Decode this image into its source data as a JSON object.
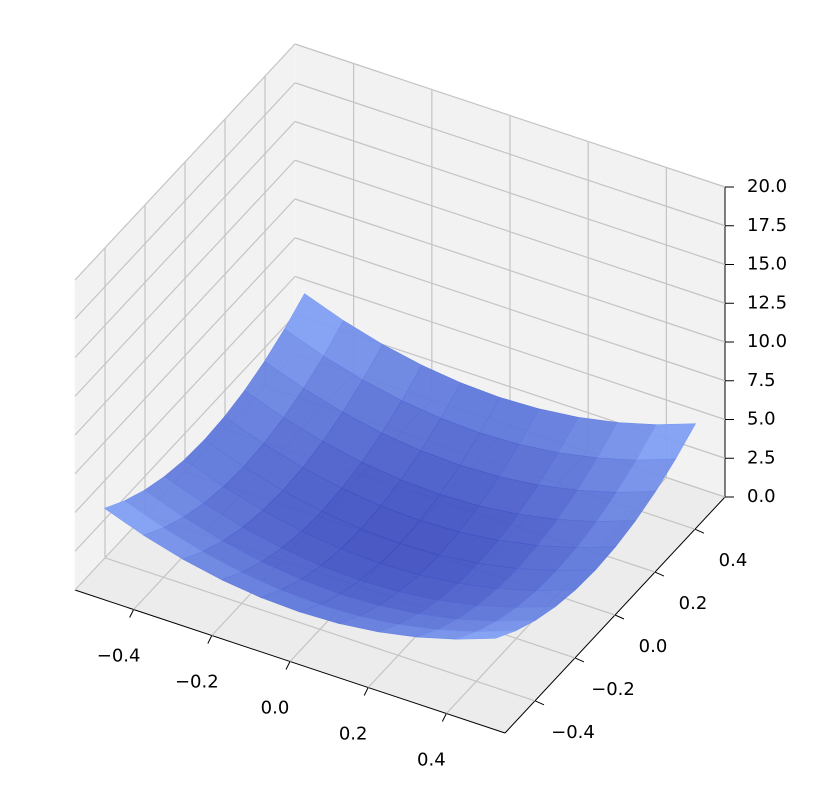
{
  "chart_data": {
    "type": "surface3d",
    "x": [
      -0.5,
      -0.4,
      -0.3,
      -0.2,
      -0.1,
      0,
      0.1,
      0.2,
      0.3,
      0.4,
      0.5
    ],
    "y": [
      -0.5,
      -0.4,
      -0.3,
      -0.2,
      -0.1,
      0,
      0.1,
      0.2,
      0.3,
      0.4,
      0.5
    ],
    "z": [
      [
        5,
        4.1,
        3.4,
        2.9,
        2.6,
        2.5,
        2.6,
        2.9,
        3.4,
        4.1,
        5
      ],
      [
        4.1,
        3.2,
        2.5,
        2,
        1.7,
        1.6,
        1.7,
        2,
        2.5,
        3.2,
        4.1
      ],
      [
        3.4,
        2.5,
        1.8,
        1.3,
        1,
        0.9,
        1,
        1.3,
        1.8,
        2.5,
        3.4
      ],
      [
        2.9,
        2,
        1.3,
        0.8,
        0.5,
        0.4,
        0.5,
        0.8,
        1.3,
        2,
        2.9
      ],
      [
        2.6,
        1.7,
        1,
        0.5,
        0.2,
        0.1,
        0.2,
        0.5,
        1,
        1.7,
        2.6
      ],
      [
        2.5,
        1.6,
        0.9,
        0.4,
        0.1,
        0,
        0.1,
        0.4,
        0.9,
        1.6,
        2.5
      ],
      [
        2.6,
        1.7,
        1,
        0.5,
        0.2,
        0.1,
        0.2,
        0.5,
        1,
        1.7,
        2.6
      ],
      [
        2.9,
        2,
        1.3,
        0.8,
        0.5,
        0.4,
        0.5,
        0.8,
        1.3,
        2,
        2.9
      ],
      [
        3.4,
        2.5,
        1.8,
        1.3,
        1,
        0.9,
        1,
        1.3,
        1.8,
        2.5,
        3.4
      ],
      [
        4.1,
        3.2,
        2.5,
        2,
        1.7,
        1.6,
        1.7,
        2,
        2.5,
        3.2,
        4.1
      ],
      [
        5,
        4.1,
        3.4,
        2.9,
        2.6,
        2.5,
        2.6,
        2.9,
        3.4,
        4.1,
        5
      ]
    ],
    "colormap": [
      "#3b4cc0",
      "#8db0fe"
    ],
    "xlim": [
      -0.55,
      0.55
    ],
    "ylim": [
      -0.55,
      0.55
    ],
    "zlim": [
      0,
      20
    ],
    "xticks": [
      {
        "value": -0.4,
        "label": "−0.4"
      },
      {
        "value": -0.2,
        "label": "−0.2"
      },
      {
        "value": 0,
        "label": "0.0"
      },
      0.2,
      0.4
    ],
    "yticks": [
      {
        "value": -0.4,
        "label": "−0.4"
      },
      {
        "value": -0.2,
        "label": "−0.2"
      },
      {
        "value": 0,
        "label": "0.0"
      },
      0.2,
      0.4
    ],
    "zticks": [
      {
        "value": 0,
        "label": "0.0"
      },
      2.5,
      {
        "value": 5,
        "label": "5.0"
      },
      7.5,
      {
        "value": 10,
        "label": "10.0"
      },
      12.5,
      {
        "value": 15,
        "label": "15.0"
      },
      17.5,
      {
        "value": 20,
        "label": "20.0"
      }
    ],
    "grid": true
  }
}
